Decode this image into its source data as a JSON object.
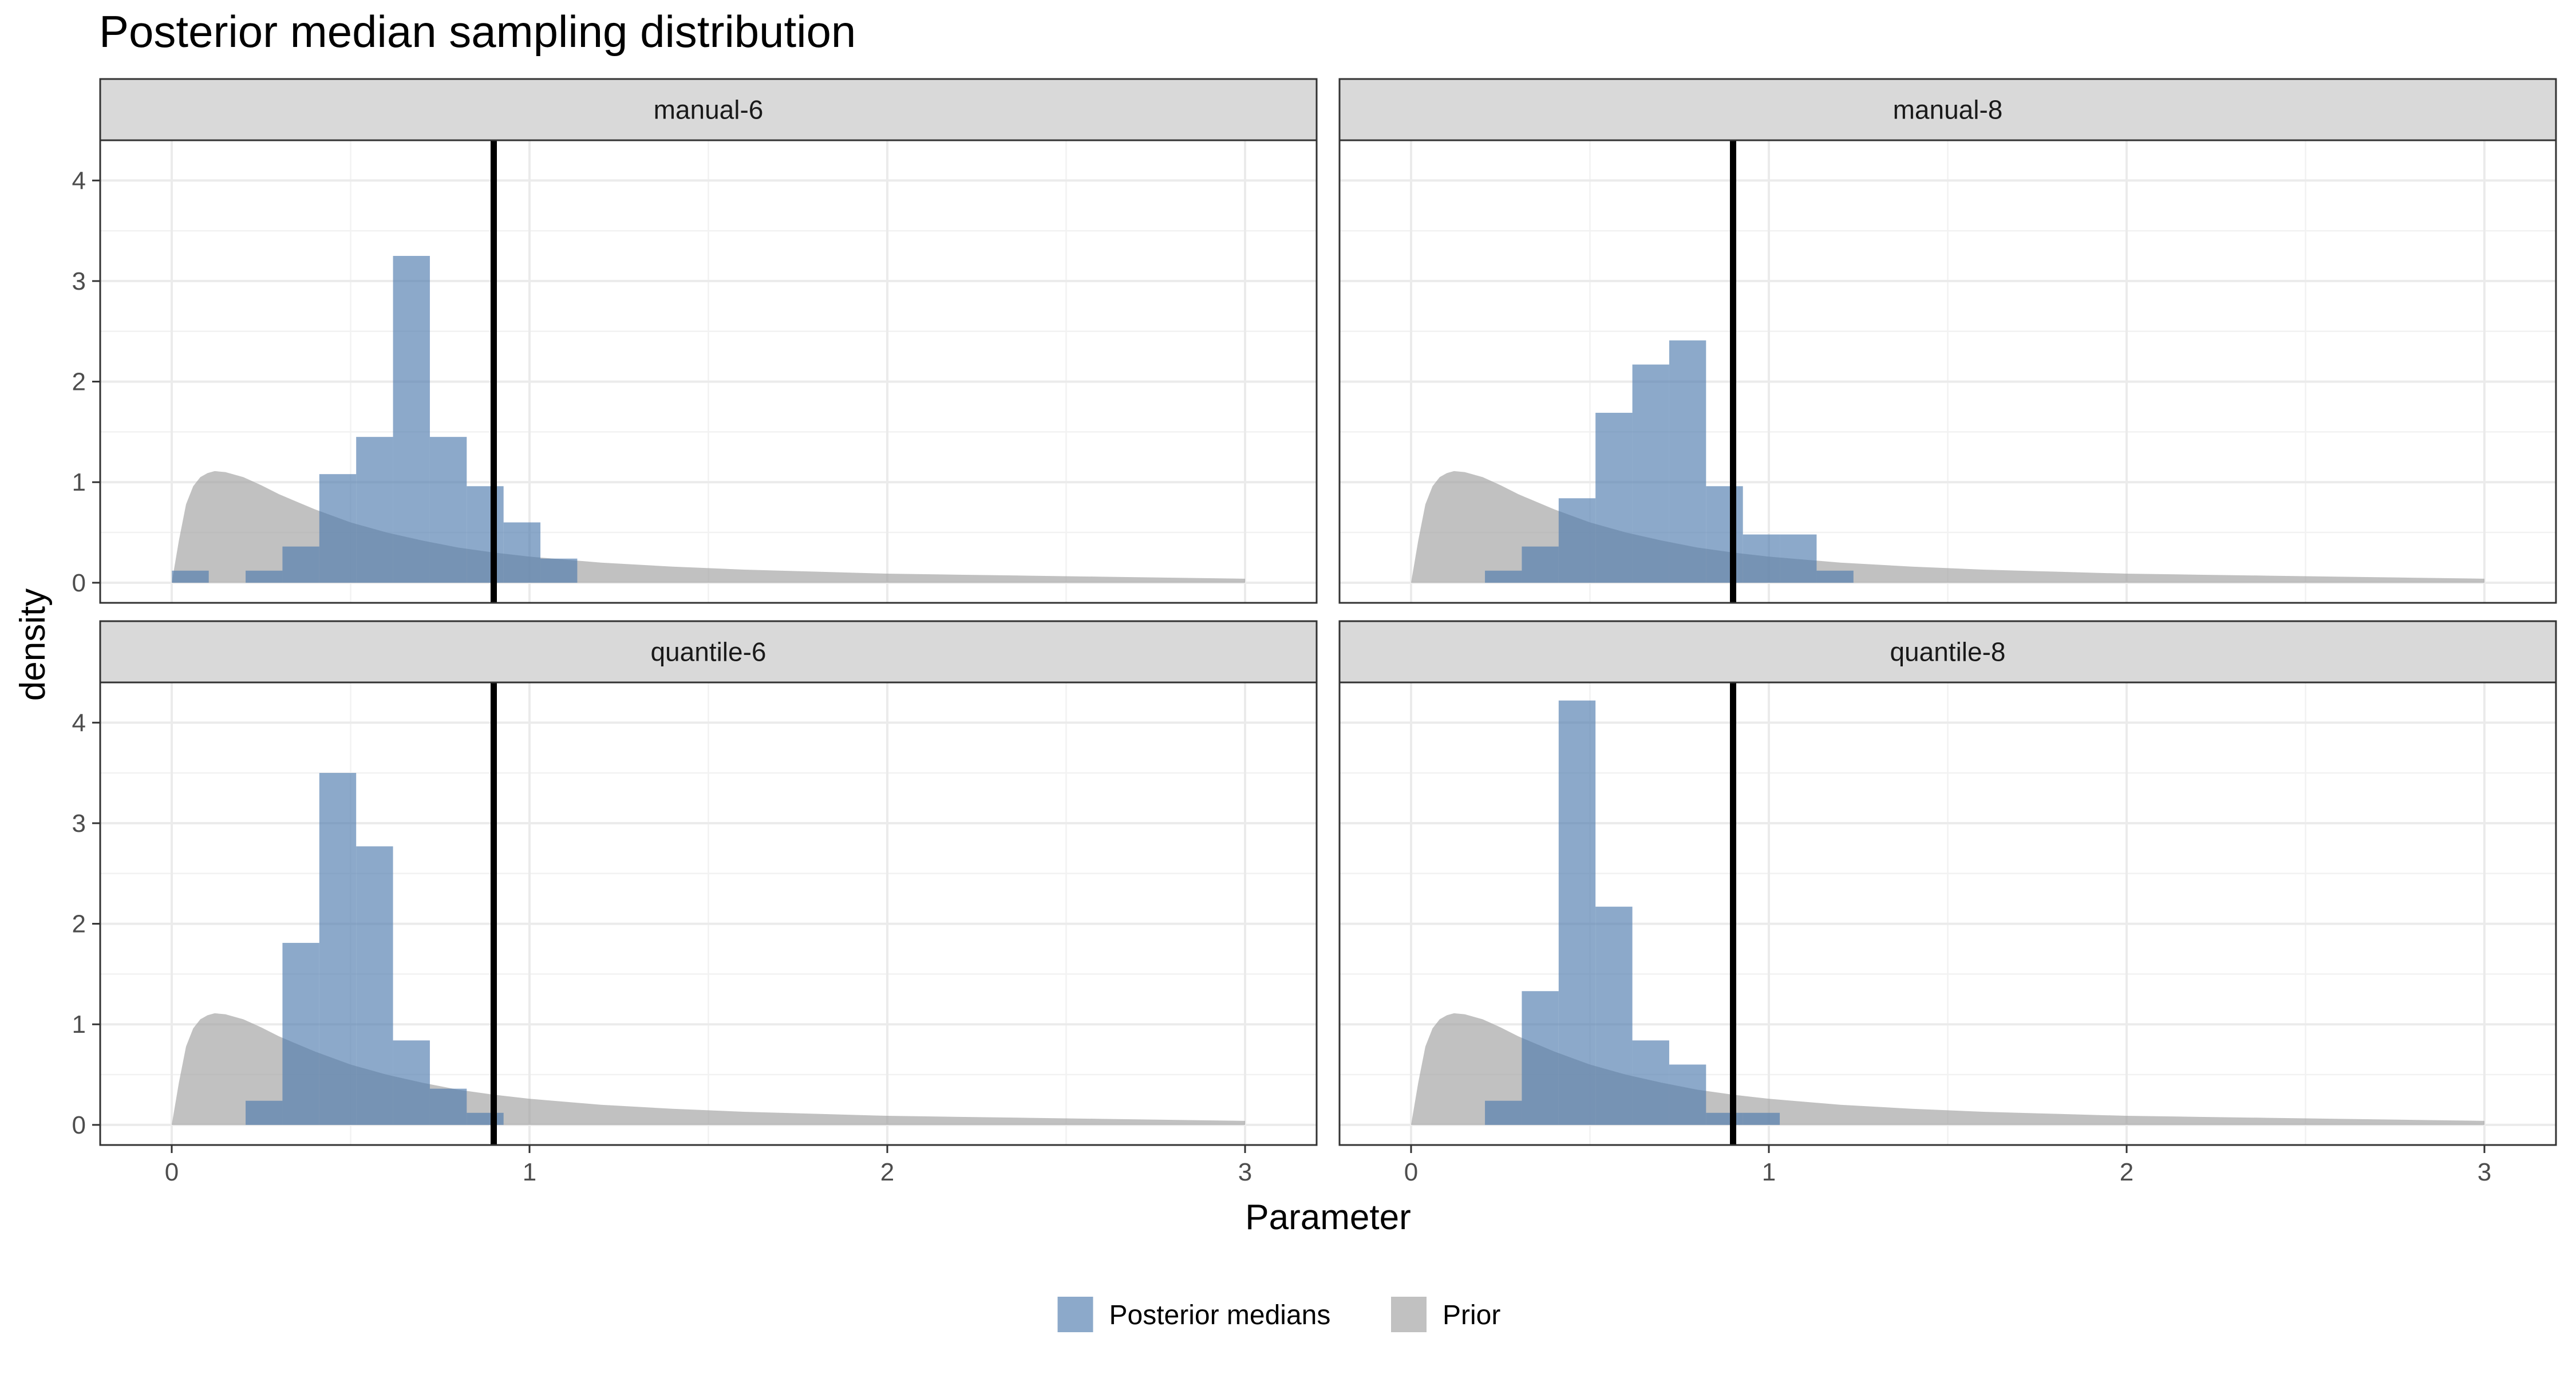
{
  "chart_data": {
    "type": "histogram",
    "title": "Posterior median sampling distribution",
    "xlabel": "Parameter",
    "ylabel": "density",
    "xlim": [
      -0.2,
      3.2
    ],
    "ylim": [
      -0.2,
      4.4
    ],
    "x_ticks": [
      0,
      1,
      2,
      3
    ],
    "x_tick_labels": [
      "0",
      "1",
      "2",
      "3"
    ],
    "y_ticks": [
      0,
      1,
      2,
      3,
      4
    ],
    "y_tick_labels": [
      "0",
      "1",
      "2",
      "3",
      "4"
    ],
    "grid": true,
    "reference_line_x": 0.9,
    "bin_width": 0.103,
    "colors": {
      "posterior": "#4F7BAD",
      "posterior_alpha": 0.65,
      "prior": "#A0A0A0",
      "prior_alpha": 0.65,
      "reference_line": "#000000",
      "strip_fill": "#D9D9D9"
    },
    "legend": {
      "position": "bottom",
      "entries": [
        {
          "label": "Posterior medians",
          "color": "#4F7BAD"
        },
        {
          "label": "Prior",
          "color": "#A0A0A0"
        }
      ]
    },
    "prior_curve": {
      "x": [
        0,
        0.02,
        0.04,
        0.06,
        0.08,
        0.1,
        0.12,
        0.15,
        0.2,
        0.25,
        0.3,
        0.4,
        0.5,
        0.6,
        0.7,
        0.8,
        0.9,
        1.0,
        1.2,
        1.4,
        1.6,
        1.8,
        2.0,
        2.2,
        2.4,
        2.6,
        2.8,
        3.0
      ],
      "y": [
        0,
        0.42,
        0.78,
        0.96,
        1.05,
        1.09,
        1.11,
        1.1,
        1.05,
        0.97,
        0.88,
        0.73,
        0.6,
        0.5,
        0.42,
        0.35,
        0.3,
        0.26,
        0.2,
        0.16,
        0.13,
        0.11,
        0.09,
        0.08,
        0.07,
        0.06,
        0.05,
        0.04
      ]
    },
    "panels": [
      {
        "strip": "manual-6",
        "bins": [
          {
            "x": 0.052,
            "density": 0.12
          },
          {
            "x": 0.155,
            "density": 0
          },
          {
            "x": 0.258,
            "density": 0.12
          },
          {
            "x": 0.361,
            "density": 0.36
          },
          {
            "x": 0.464,
            "density": 1.08
          },
          {
            "x": 0.567,
            "density": 1.45
          },
          {
            "x": 0.67,
            "density": 3.25
          },
          {
            "x": 0.773,
            "density": 1.45
          },
          {
            "x": 0.876,
            "density": 0.96
          },
          {
            "x": 0.979,
            "density": 0.6
          },
          {
            "x": 1.082,
            "density": 0.24
          }
        ]
      },
      {
        "strip": "manual-8",
        "bins": [
          {
            "x": 0.258,
            "density": 0.12
          },
          {
            "x": 0.361,
            "density": 0.36
          },
          {
            "x": 0.464,
            "density": 0.84
          },
          {
            "x": 0.567,
            "density": 1.69
          },
          {
            "x": 0.67,
            "density": 2.17
          },
          {
            "x": 0.773,
            "density": 2.41
          },
          {
            "x": 0.876,
            "density": 0.96
          },
          {
            "x": 0.979,
            "density": 0.48
          },
          {
            "x": 1.082,
            "density": 0.48
          },
          {
            "x": 1.185,
            "density": 0.12
          }
        ]
      },
      {
        "strip": "quantile-6",
        "bins": [
          {
            "x": 0.258,
            "density": 0.24
          },
          {
            "x": 0.361,
            "density": 1.81
          },
          {
            "x": 0.464,
            "density": 3.5
          },
          {
            "x": 0.567,
            "density": 2.77
          },
          {
            "x": 0.67,
            "density": 0.84
          },
          {
            "x": 0.773,
            "density": 0.36
          },
          {
            "x": 0.876,
            "density": 0.12
          }
        ]
      },
      {
        "strip": "quantile-8",
        "bins": [
          {
            "x": 0.258,
            "density": 0.24
          },
          {
            "x": 0.361,
            "density": 1.33
          },
          {
            "x": 0.464,
            "density": 4.22
          },
          {
            "x": 0.567,
            "density": 2.17
          },
          {
            "x": 0.67,
            "density": 0.84
          },
          {
            "x": 0.773,
            "density": 0.6
          },
          {
            "x": 0.876,
            "density": 0.12
          },
          {
            "x": 0.979,
            "density": 0.12
          }
        ]
      }
    ]
  }
}
